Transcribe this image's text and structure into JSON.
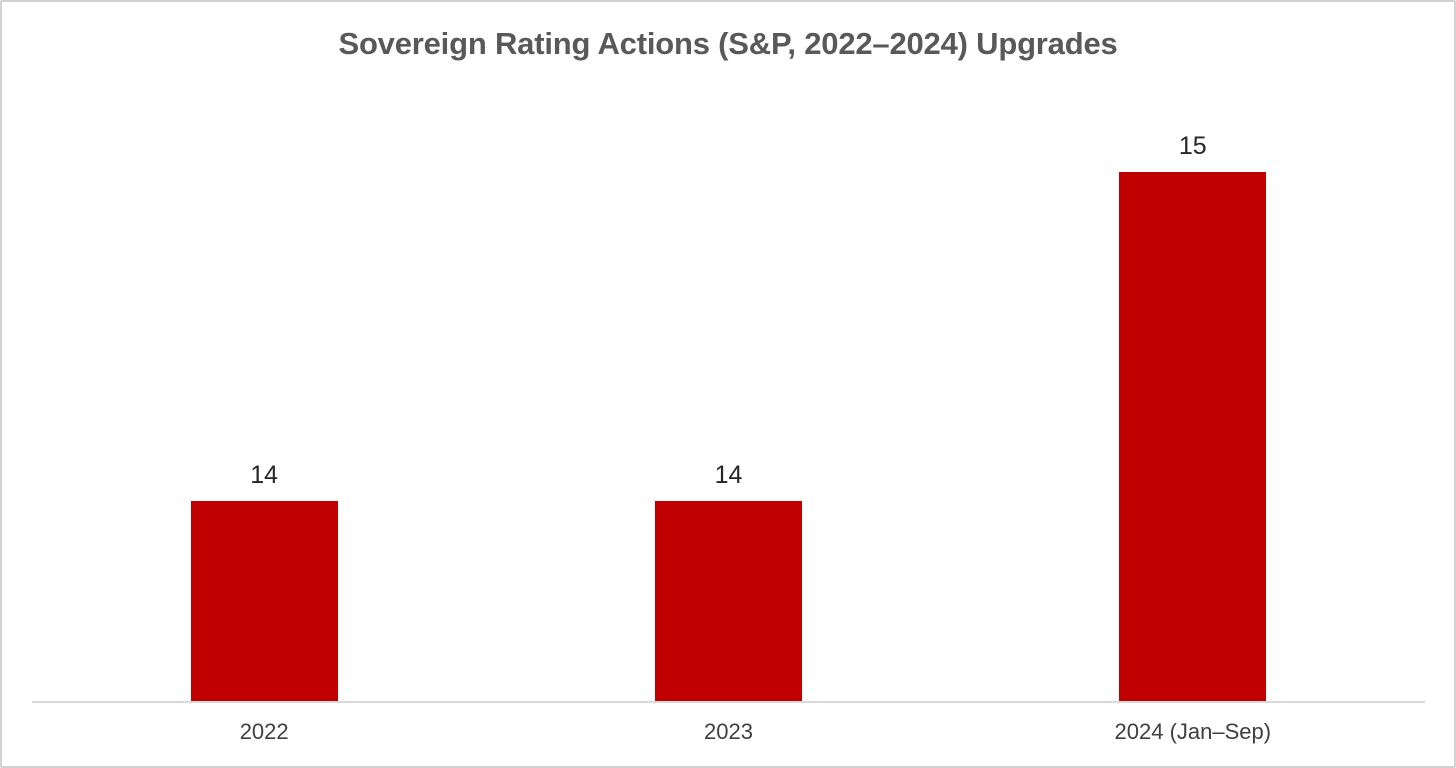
{
  "chart_data": {
    "type": "bar",
    "title": "Sovereign Rating Actions (S&P, 2022–2024) Upgrades",
    "categories": [
      "2022",
      "2023",
      "2024 (Jan–Sep)"
    ],
    "values": [
      14,
      14,
      15
    ],
    "data_labels": [
      "14",
      "14",
      "15"
    ],
    "xlabel": "",
    "ylabel": "",
    "ylim": [
      13.39,
      15.26
    ],
    "y_axis_visible": false,
    "gridlines": false,
    "legend": "none",
    "colors": {
      "bar": "#C00000",
      "title_text": "#595959",
      "data_label_text": "#262626",
      "axis_label_text": "#404040",
      "axis_line": "#D9D9D9",
      "frame_border": "#D2D2D2",
      "background": "#FFFFFF"
    }
  }
}
